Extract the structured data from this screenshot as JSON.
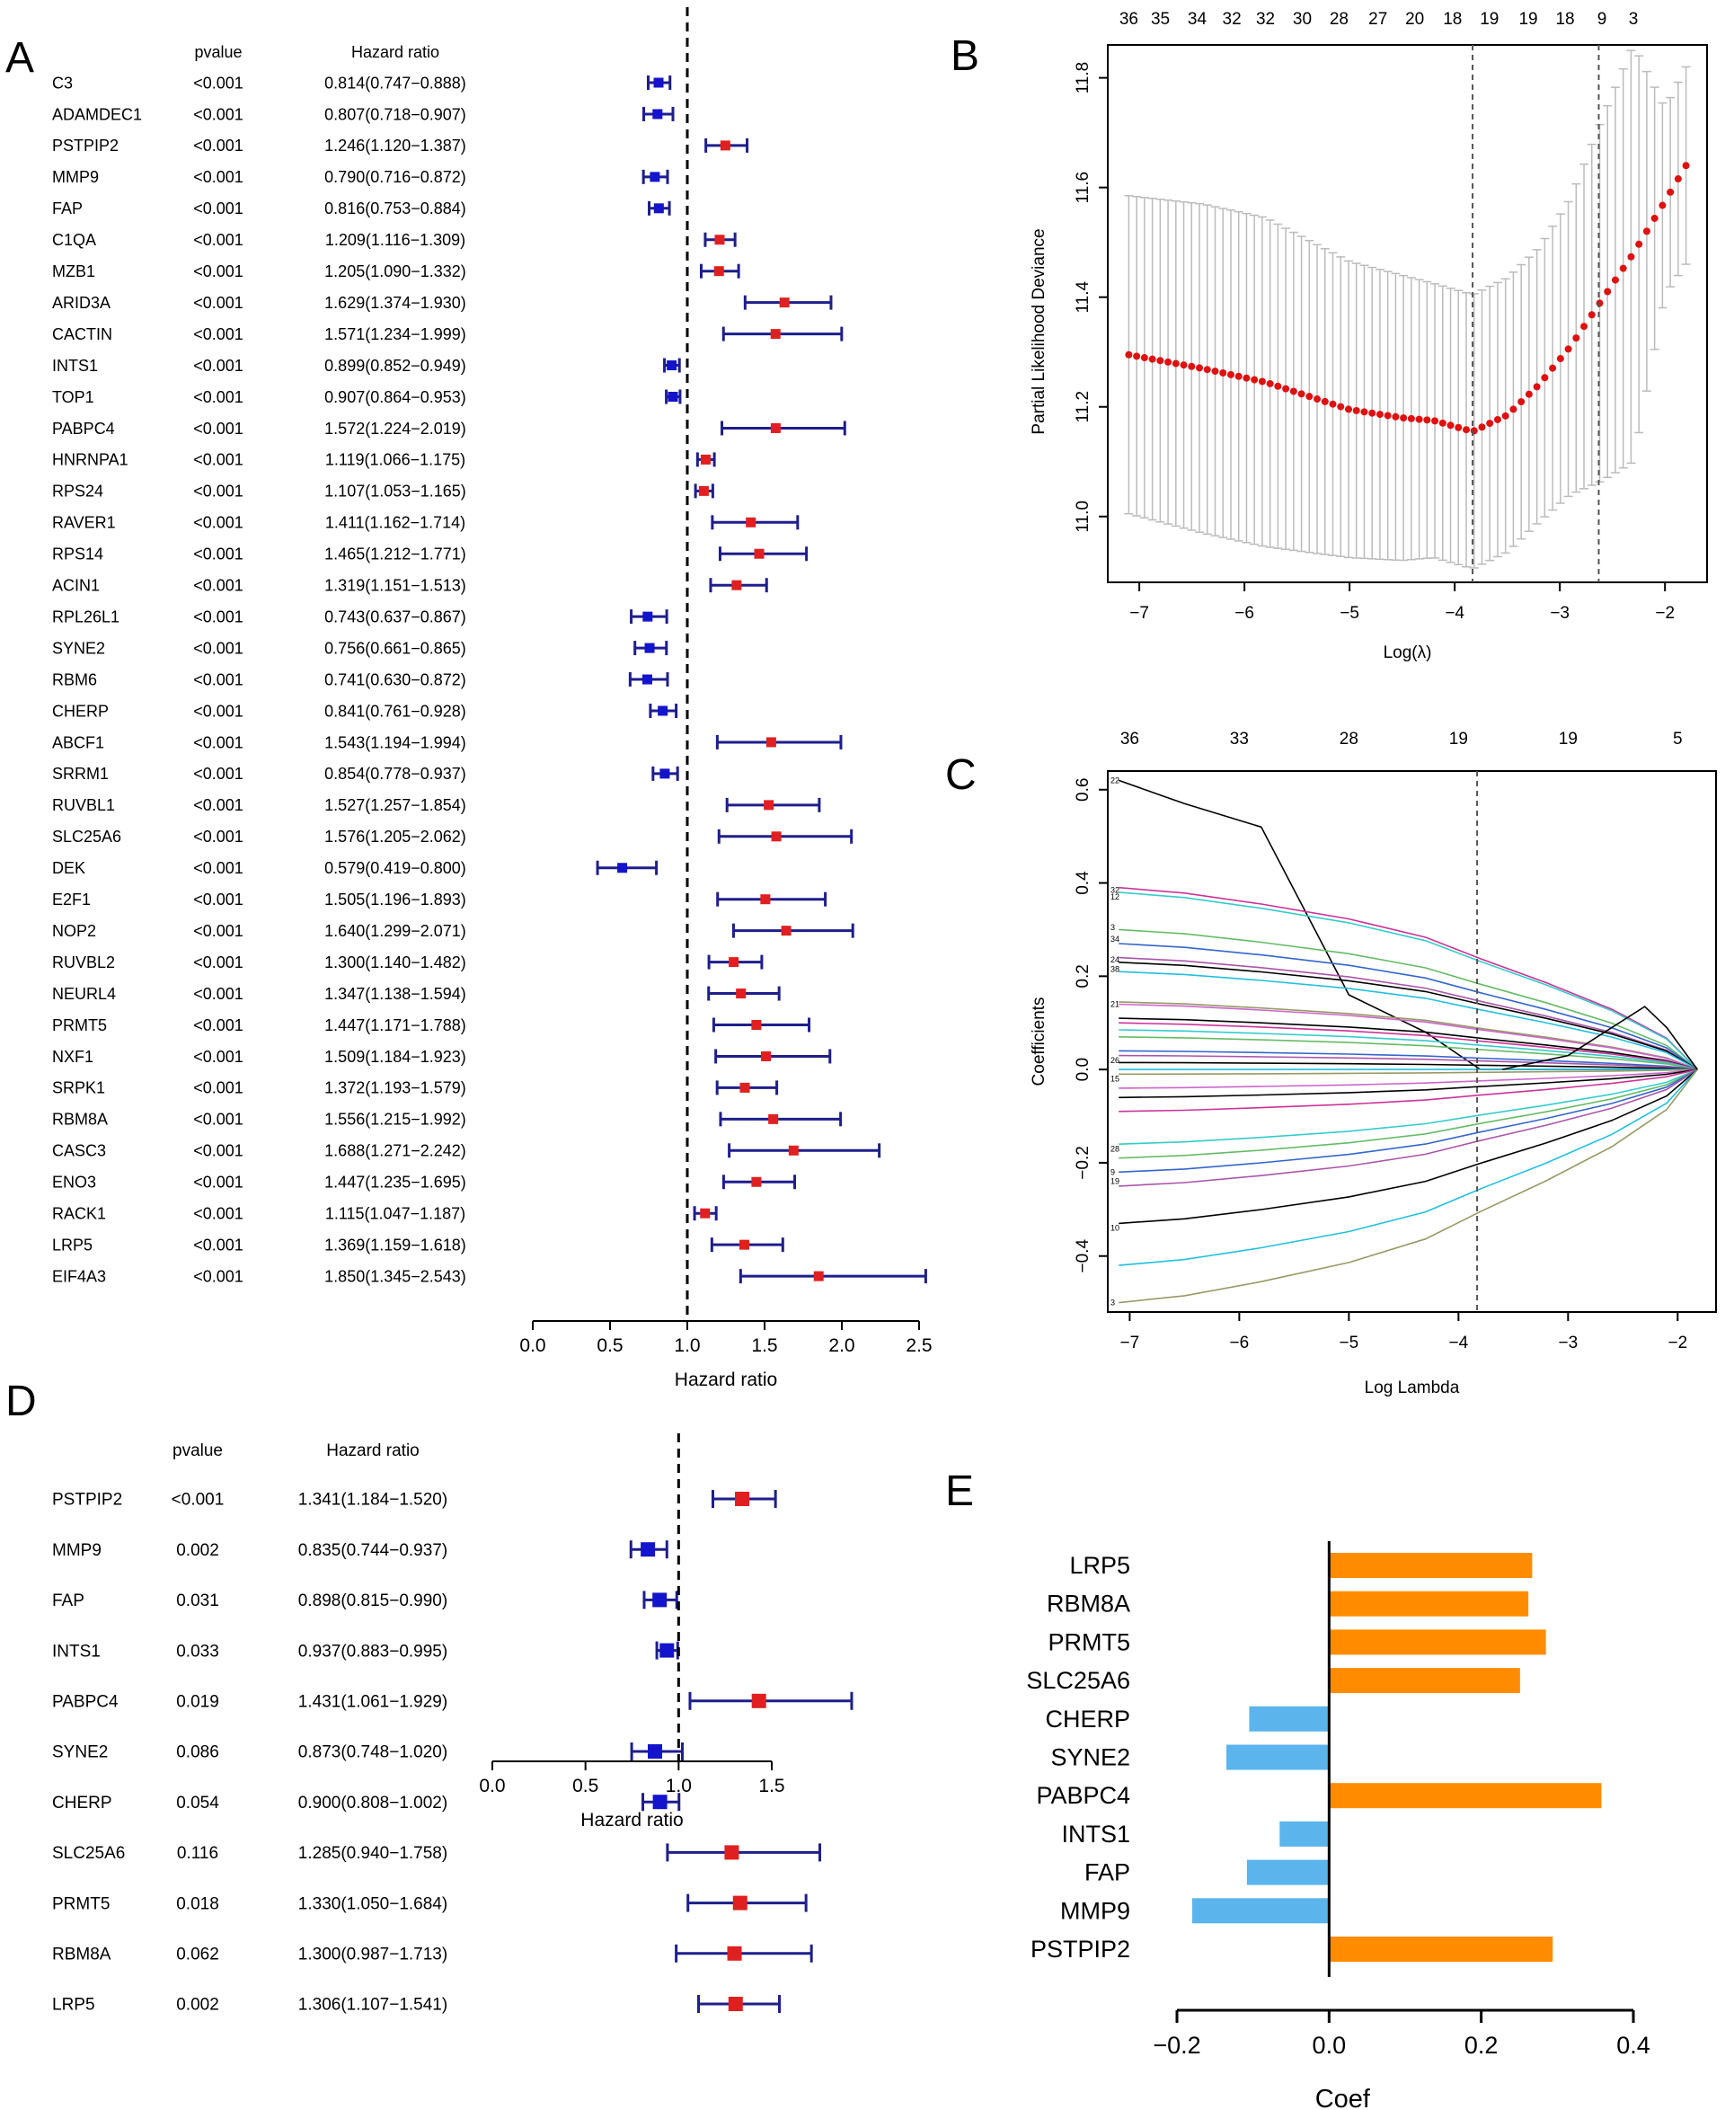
{
  "panel_letters": {
    "a": "A",
    "b": "B",
    "c": "C",
    "d": "D",
    "e": "E"
  },
  "colors": {
    "protective": "#1414cc",
    "risk": "#e02020",
    "ci_line": "#1e1e8c",
    "lasso_point": "#e01010",
    "bar_positive": "#ff8c00",
    "bar_negative": "#5bb4ec"
  },
  "chart_data": [
    {
      "id": "A",
      "type": "forest",
      "col_headers": {
        "pvalue": "pvalue",
        "hr": "Hazard ratio"
      },
      "xlabel": "Hazard ratio",
      "xlim": [
        0,
        2.5
      ],
      "xticks": [
        "0.0",
        "0.5",
        "1.0",
        "1.5",
        "2.0",
        "2.5"
      ],
      "reference_line": 1.0,
      "rows": [
        {
          "gene": "C3",
          "pvalue": "<0.001",
          "hr_text": "0.814(0.747−0.888)",
          "hr": 0.814,
          "low": 0.747,
          "high": 0.888
        },
        {
          "gene": "ADAMDEC1",
          "pvalue": "<0.001",
          "hr_text": "0.807(0.718−0.907)",
          "hr": 0.807,
          "low": 0.718,
          "high": 0.907
        },
        {
          "gene": "PSTPIP2",
          "pvalue": "<0.001",
          "hr_text": "1.246(1.120−1.387)",
          "hr": 1.246,
          "low": 1.12,
          "high": 1.387
        },
        {
          "gene": "MMP9",
          "pvalue": "<0.001",
          "hr_text": "0.790(0.716−0.872)",
          "hr": 0.79,
          "low": 0.716,
          "high": 0.872
        },
        {
          "gene": "FAP",
          "pvalue": "<0.001",
          "hr_text": "0.816(0.753−0.884)",
          "hr": 0.816,
          "low": 0.753,
          "high": 0.884
        },
        {
          "gene": "C1QA",
          "pvalue": "<0.001",
          "hr_text": "1.209(1.116−1.309)",
          "hr": 1.209,
          "low": 1.116,
          "high": 1.309
        },
        {
          "gene": "MZB1",
          "pvalue": "<0.001",
          "hr_text": "1.205(1.090−1.332)",
          "hr": 1.205,
          "low": 1.09,
          "high": 1.332
        },
        {
          "gene": "ARID3A",
          "pvalue": "<0.001",
          "hr_text": "1.629(1.374−1.930)",
          "hr": 1.629,
          "low": 1.374,
          "high": 1.93
        },
        {
          "gene": "CACTIN",
          "pvalue": "<0.001",
          "hr_text": "1.571(1.234−1.999)",
          "hr": 1.571,
          "low": 1.234,
          "high": 1.999
        },
        {
          "gene": "INTS1",
          "pvalue": "<0.001",
          "hr_text": "0.899(0.852−0.949)",
          "hr": 0.899,
          "low": 0.852,
          "high": 0.949
        },
        {
          "gene": "TOP1",
          "pvalue": "<0.001",
          "hr_text": "0.907(0.864−0.953)",
          "hr": 0.907,
          "low": 0.864,
          "high": 0.953
        },
        {
          "gene": "PABPC4",
          "pvalue": "<0.001",
          "hr_text": "1.572(1.224−2.019)",
          "hr": 1.572,
          "low": 1.224,
          "high": 2.019
        },
        {
          "gene": "HNRNPA1",
          "pvalue": "<0.001",
          "hr_text": "1.119(1.066−1.175)",
          "hr": 1.119,
          "low": 1.066,
          "high": 1.175
        },
        {
          "gene": "RPS24",
          "pvalue": "<0.001",
          "hr_text": "1.107(1.053−1.165)",
          "hr": 1.107,
          "low": 1.053,
          "high": 1.165
        },
        {
          "gene": "RAVER1",
          "pvalue": "<0.001",
          "hr_text": "1.411(1.162−1.714)",
          "hr": 1.411,
          "low": 1.162,
          "high": 1.714
        },
        {
          "gene": "RPS14",
          "pvalue": "<0.001",
          "hr_text": "1.465(1.212−1.771)",
          "hr": 1.465,
          "low": 1.212,
          "high": 1.771
        },
        {
          "gene": "ACIN1",
          "pvalue": "<0.001",
          "hr_text": "1.319(1.151−1.513)",
          "hr": 1.319,
          "low": 1.151,
          "high": 1.513
        },
        {
          "gene": "RPL26L1",
          "pvalue": "<0.001",
          "hr_text": "0.743(0.637−0.867)",
          "hr": 0.743,
          "low": 0.637,
          "high": 0.867
        },
        {
          "gene": "SYNE2",
          "pvalue": "<0.001",
          "hr_text": "0.756(0.661−0.865)",
          "hr": 0.756,
          "low": 0.661,
          "high": 0.865
        },
        {
          "gene": "RBM6",
          "pvalue": "<0.001",
          "hr_text": "0.741(0.630−0.872)",
          "hr": 0.741,
          "low": 0.63,
          "high": 0.872
        },
        {
          "gene": "CHERP",
          "pvalue": "<0.001",
          "hr_text": "0.841(0.761−0.928)",
          "hr": 0.841,
          "low": 0.761,
          "high": 0.928
        },
        {
          "gene": "ABCF1",
          "pvalue": "<0.001",
          "hr_text": "1.543(1.194−1.994)",
          "hr": 1.543,
          "low": 1.194,
          "high": 1.994
        },
        {
          "gene": "SRRM1",
          "pvalue": "<0.001",
          "hr_text": "0.854(0.778−0.937)",
          "hr": 0.854,
          "low": 0.778,
          "high": 0.937
        },
        {
          "gene": "RUVBL1",
          "pvalue": "<0.001",
          "hr_text": "1.527(1.257−1.854)",
          "hr": 1.527,
          "low": 1.257,
          "high": 1.854
        },
        {
          "gene": "SLC25A6",
          "pvalue": "<0.001",
          "hr_text": "1.576(1.205−2.062)",
          "hr": 1.576,
          "low": 1.205,
          "high": 2.062
        },
        {
          "gene": "DEK",
          "pvalue": "<0.001",
          "hr_text": "0.579(0.419−0.800)",
          "hr": 0.579,
          "low": 0.419,
          "high": 0.8
        },
        {
          "gene": "E2F1",
          "pvalue": "<0.001",
          "hr_text": "1.505(1.196−1.893)",
          "hr": 1.505,
          "low": 1.196,
          "high": 1.893
        },
        {
          "gene": "NOP2",
          "pvalue": "<0.001",
          "hr_text": "1.640(1.299−2.071)",
          "hr": 1.64,
          "low": 1.299,
          "high": 2.071
        },
        {
          "gene": "RUVBL2",
          "pvalue": "<0.001",
          "hr_text": "1.300(1.140−1.482)",
          "hr": 1.3,
          "low": 1.14,
          "high": 1.482
        },
        {
          "gene": "NEURL4",
          "pvalue": "<0.001",
          "hr_text": "1.347(1.138−1.594)",
          "hr": 1.347,
          "low": 1.138,
          "high": 1.594
        },
        {
          "gene": "PRMT5",
          "pvalue": "<0.001",
          "hr_text": "1.447(1.171−1.788)",
          "hr": 1.447,
          "low": 1.171,
          "high": 1.788
        },
        {
          "gene": "NXF1",
          "pvalue": "<0.001",
          "hr_text": "1.509(1.184−1.923)",
          "hr": 1.509,
          "low": 1.184,
          "high": 1.923
        },
        {
          "gene": "SRPK1",
          "pvalue": "<0.001",
          "hr_text": "1.372(1.193−1.579)",
          "hr": 1.372,
          "low": 1.193,
          "high": 1.579
        },
        {
          "gene": "RBM8A",
          "pvalue": "<0.001",
          "hr_text": "1.556(1.215−1.992)",
          "hr": 1.556,
          "low": 1.215,
          "high": 1.992
        },
        {
          "gene": "CASC3",
          "pvalue": "<0.001",
          "hr_text": "1.688(1.271−2.242)",
          "hr": 1.688,
          "low": 1.271,
          "high": 2.242
        },
        {
          "gene": "ENO3",
          "pvalue": "<0.001",
          "hr_text": "1.447(1.235−1.695)",
          "hr": 1.447,
          "low": 1.235,
          "high": 1.695
        },
        {
          "gene": "RACK1",
          "pvalue": "<0.001",
          "hr_text": "1.115(1.047−1.187)",
          "hr": 1.115,
          "low": 1.047,
          "high": 1.187
        },
        {
          "gene": "LRP5",
          "pvalue": "<0.001",
          "hr_text": "1.369(1.159−1.618)",
          "hr": 1.369,
          "low": 1.159,
          "high": 1.618
        },
        {
          "gene": "EIF4A3",
          "pvalue": "<0.001",
          "hr_text": "1.850(1.345−2.543)",
          "hr": 1.85,
          "low": 1.345,
          "high": 2.543
        }
      ]
    },
    {
      "id": "B",
      "type": "scatter",
      "xlabel": "Log(λ)",
      "ylabel": "Partial Likelihood Deviance",
      "xlim": [
        -7.3,
        -1.6
      ],
      "ylim": [
        10.88,
        11.86
      ],
      "xticks": [
        "−7",
        "−6",
        "−5",
        "−4",
        "−3",
        "−2"
      ],
      "yticks": [
        "11.0",
        "11.2",
        "11.4",
        "11.6",
        "11.8"
      ],
      "top_axis_labels": [
        "36",
        "35",
        "34",
        "32",
        "32",
        "30",
        "28",
        "27",
        "20",
        "18",
        "19",
        "19",
        "18",
        "9",
        "3"
      ],
      "top_axis_x": [
        -7.1,
        -6.8,
        -6.45,
        -6.12,
        -5.8,
        -5.45,
        -5.1,
        -4.73,
        -4.38,
        -4.02,
        -3.67,
        -3.3,
        -2.95,
        -2.6,
        -2.3
      ],
      "vlines": [
        -3.83,
        -2.63
      ],
      "deviance_curve": {
        "x": [
          -7.1,
          -6.4,
          -5.8,
          -5.0,
          -4.5,
          -4.2,
          -3.83,
          -3.5,
          -3.2,
          -2.9,
          -2.6,
          -2.3,
          -2.0,
          -1.8
        ],
        "mean": [
          11.295,
          11.27,
          11.245,
          11.195,
          11.18,
          11.175,
          11.155,
          11.185,
          11.24,
          11.31,
          11.395,
          11.48,
          11.575,
          11.64
        ],
        "ci_half_width": [
          0.29,
          0.3,
          0.3,
          0.27,
          0.26,
          0.25,
          0.25,
          0.25,
          0.25,
          0.27,
          0.33,
          0.38,
          0.17,
          0.18
        ]
      }
    },
    {
      "id": "C",
      "type": "line",
      "xlabel": "Log Lambda",
      "ylabel": "Coefficients",
      "xlim": [
        -7.2,
        -1.65
      ],
      "ylim": [
        -0.52,
        0.64
      ],
      "xticks": [
        "−7",
        "−6",
        "−5",
        "−4",
        "−3",
        "−2"
      ],
      "yticks": [
        "−0.4",
        "−0.2",
        "0.0",
        "0.2",
        "0.4",
        "0.6"
      ],
      "top_axis_labels": [
        "36",
        "33",
        "28",
        "19",
        "19",
        "5"
      ],
      "top_axis_x": [
        -7.0,
        -6.0,
        -5.0,
        -4.0,
        -3.0,
        -2.0
      ],
      "vline": -3.83,
      "path_label_samples": [
        "22",
        "32",
        "12",
        "3",
        "34",
        "24",
        "38",
        "21",
        "26",
        "15",
        "28",
        "9",
        "19",
        "10",
        "3"
      ]
    },
    {
      "id": "D",
      "type": "forest",
      "col_headers": {
        "pvalue": "pvalue",
        "hr": "Hazard ratio"
      },
      "xlabel": "Hazard ratio",
      "xlim": [
        0,
        1.5
      ],
      "xticks": [
        "0.0",
        "0.5",
        "1.0",
        "1.5"
      ],
      "reference_line": 1.0,
      "rows": [
        {
          "gene": "PSTPIP2",
          "pvalue": "<0.001",
          "hr_text": "1.341(1.184−1.520)",
          "hr": 1.341,
          "low": 1.184,
          "high": 1.52
        },
        {
          "gene": "MMP9",
          "pvalue": "0.002",
          "hr_text": "0.835(0.744−0.937)",
          "hr": 0.835,
          "low": 0.744,
          "high": 0.937
        },
        {
          "gene": "FAP",
          "pvalue": "0.031",
          "hr_text": "0.898(0.815−0.990)",
          "hr": 0.898,
          "low": 0.815,
          "high": 0.99
        },
        {
          "gene": "INTS1",
          "pvalue": "0.033",
          "hr_text": "0.937(0.883−0.995)",
          "hr": 0.937,
          "low": 0.883,
          "high": 0.995
        },
        {
          "gene": "PABPC4",
          "pvalue": "0.019",
          "hr_text": "1.431(1.061−1.929)",
          "hr": 1.431,
          "low": 1.061,
          "high": 1.929
        },
        {
          "gene": "SYNE2",
          "pvalue": "0.086",
          "hr_text": "0.873(0.748−1.020)",
          "hr": 0.873,
          "low": 0.748,
          "high": 1.02
        },
        {
          "gene": "CHERP",
          "pvalue": "0.054",
          "hr_text": "0.900(0.808−1.002)",
          "hr": 0.9,
          "low": 0.808,
          "high": 1.002
        },
        {
          "gene": "SLC25A6",
          "pvalue": "0.116",
          "hr_text": "1.285(0.940−1.758)",
          "hr": 1.285,
          "low": 0.94,
          "high": 1.758
        },
        {
          "gene": "PRMT5",
          "pvalue": "0.018",
          "hr_text": "1.330(1.050−1.684)",
          "hr": 1.33,
          "low": 1.05,
          "high": 1.684
        },
        {
          "gene": "RBM8A",
          "pvalue": "0.062",
          "hr_text": "1.300(0.987−1.713)",
          "hr": 1.3,
          "low": 0.987,
          "high": 1.713
        },
        {
          "gene": "LRP5",
          "pvalue": "0.002",
          "hr_text": "1.306(1.107−1.541)",
          "hr": 1.306,
          "low": 1.107,
          "high": 1.541
        }
      ]
    },
    {
      "id": "E",
      "type": "bar",
      "orientation": "horizontal",
      "xlabel": "Coef",
      "xlim": [
        -0.2,
        0.4
      ],
      "xticks": [
        "−0.2",
        "0.0",
        "0.2",
        "0.4"
      ],
      "categories": [
        "LRP5",
        "RBM8A",
        "PRMT5",
        "SLC25A6",
        "CHERP",
        "SYNE2",
        "PABPC4",
        "INTS1",
        "FAP",
        "MMP9",
        "PSTPIP2"
      ],
      "values": [
        0.267,
        0.262,
        0.285,
        0.251,
        -0.105,
        -0.135,
        0.358,
        -0.065,
        -0.108,
        -0.18,
        0.294
      ]
    }
  ]
}
